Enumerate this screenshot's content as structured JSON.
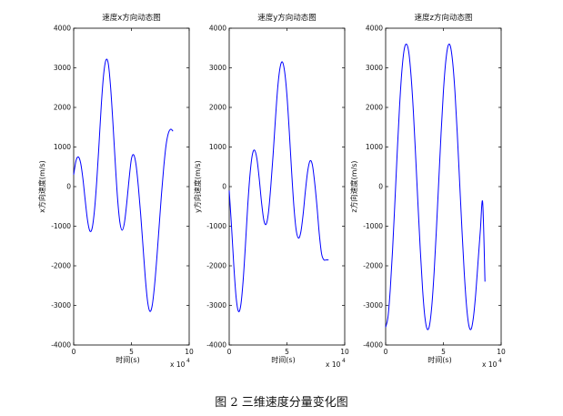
{
  "caption": "图 2  三维速度分量变化图",
  "chart_data": [
    {
      "type": "line",
      "title": "速度x方向动态图",
      "xlabel": "时间(s)",
      "ylabel": "x方向速度(m/s)",
      "x_exponent_label": "x 10",
      "x_exponent_power": "4",
      "xlim": [
        0,
        10
      ],
      "ylim": [
        -4000,
        4000
      ],
      "xticks": [
        0,
        5,
        10
      ],
      "yticks": [
        -4000,
        -3000,
        -2000,
        -1000,
        0,
        1000,
        2000,
        3000,
        4000
      ],
      "color": "#0000ff",
      "series": [
        {
          "x": [
            0,
            0.2,
            0.4,
            0.6,
            0.8,
            1.0,
            1.2,
            1.4,
            1.6,
            1.8,
            2.0,
            2.2,
            2.4,
            2.6,
            2.8,
            3.0,
            3.2,
            3.4,
            3.6,
            3.8,
            4.0,
            4.2,
            4.4,
            4.6,
            4.8,
            5.0,
            5.2,
            5.4,
            5.6,
            5.8,
            6.0,
            6.2,
            6.4,
            6.6,
            6.8,
            7.0,
            7.2,
            7.4,
            7.6,
            7.8,
            8.0,
            8.2,
            8.4,
            8.6
          ],
          "y": [
            300,
            650,
            750,
            600,
            200,
            -350,
            -850,
            -1120,
            -1050,
            -600,
            150,
            1100,
            2100,
            2850,
            3200,
            3100,
            2500,
            1600,
            600,
            -300,
            -900,
            -1100,
            -900,
            -400,
            200,
            700,
            800,
            550,
            0,
            -700,
            -1500,
            -2300,
            -2900,
            -3150,
            -3000,
            -2500,
            -1800,
            -1000,
            -200,
            500,
            1050,
            1350,
            1450,
            1400
          ]
        }
      ]
    },
    {
      "type": "line",
      "title": "速度y方向动态图",
      "xlabel": "时间(s)",
      "ylabel": "y方向速度(m/s)",
      "x_exponent_label": "x 10",
      "x_exponent_power": "4",
      "xlim": [
        0,
        10
      ],
      "ylim": [
        -4000,
        4000
      ],
      "xticks": [
        0,
        5,
        10
      ],
      "yticks": [
        -4000,
        -3000,
        -2000,
        -1000,
        0,
        1000,
        2000,
        3000,
        4000
      ],
      "color": "#0000ff",
      "series": [
        {
          "x": [
            0,
            0.2,
            0.4,
            0.6,
            0.8,
            1.0,
            1.2,
            1.4,
            1.6,
            1.8,
            2.0,
            2.2,
            2.4,
            2.6,
            2.8,
            3.0,
            3.2,
            3.4,
            3.6,
            3.8,
            4.0,
            4.2,
            4.4,
            4.6,
            4.8,
            5.0,
            5.2,
            5.4,
            5.6,
            5.8,
            6.0,
            6.2,
            6.4,
            6.6,
            6.8,
            7.0,
            7.2,
            7.4,
            7.6,
            7.8,
            8.0,
            8.2,
            8.4,
            8.6
          ],
          "y": [
            -100,
            -1000,
            -2000,
            -2800,
            -3150,
            -3000,
            -2400,
            -1500,
            -500,
            300,
            800,
            920,
            700,
            200,
            -400,
            -850,
            -950,
            -650,
            0,
            800,
            1700,
            2500,
            3000,
            3150,
            2900,
            2300,
            1400,
            400,
            -500,
            -1100,
            -1300,
            -1150,
            -700,
            -100,
            400,
            650,
            550,
            100,
            -500,
            -1200,
            -1700,
            -1850,
            -1850,
            -1850
          ]
        }
      ]
    },
    {
      "type": "line",
      "title": "速度z方向动态图",
      "xlabel": "时间(s)",
      "ylabel": "z方向速度(m/s)",
      "x_exponent_label": "x 10",
      "x_exponent_power": "4",
      "xlim": [
        0,
        10
      ],
      "ylim": [
        -4000,
        4000
      ],
      "xticks": [
        0,
        5,
        10
      ],
      "yticks": [
        -4000,
        -3000,
        -2000,
        -1000,
        0,
        1000,
        2000,
        3000,
        4000
      ],
      "color": "#0000ff",
      "series": [
        {
          "x": [
            0,
            0.2,
            0.4,
            0.6,
            0.8,
            1.0,
            1.2,
            1.4,
            1.6,
            1.8,
            2.0,
            2.2,
            2.4,
            2.6,
            2.8,
            3.0,
            3.2,
            3.4,
            3.6,
            3.8,
            4.0,
            4.2,
            4.4,
            4.6,
            4.8,
            5.0,
            5.2,
            5.4,
            5.6,
            5.8,
            6.0,
            6.2,
            6.4,
            6.6,
            6.8,
            7.0,
            7.2,
            7.4,
            7.6,
            7.8,
            8.0,
            8.2,
            8.4,
            8.6
          ],
          "y": [
            -3550,
            -3300,
            -2600,
            -1600,
            -400,
            850,
            2000,
            2900,
            3450,
            3600,
            3400,
            2800,
            1900,
            750,
            -450,
            -1600,
            -2600,
            -3300,
            -3600,
            -3500,
            -3000,
            -2150,
            -1050,
            150,
            1350,
            2400,
            3150,
            3550,
            3550,
            3150,
            2400,
            1350,
            150,
            -1050,
            -2150,
            -3000,
            -3500,
            -3600,
            -3300,
            -2700,
            -1900,
            -1100,
            -400,
            -2400
          ]
        }
      ]
    }
  ]
}
